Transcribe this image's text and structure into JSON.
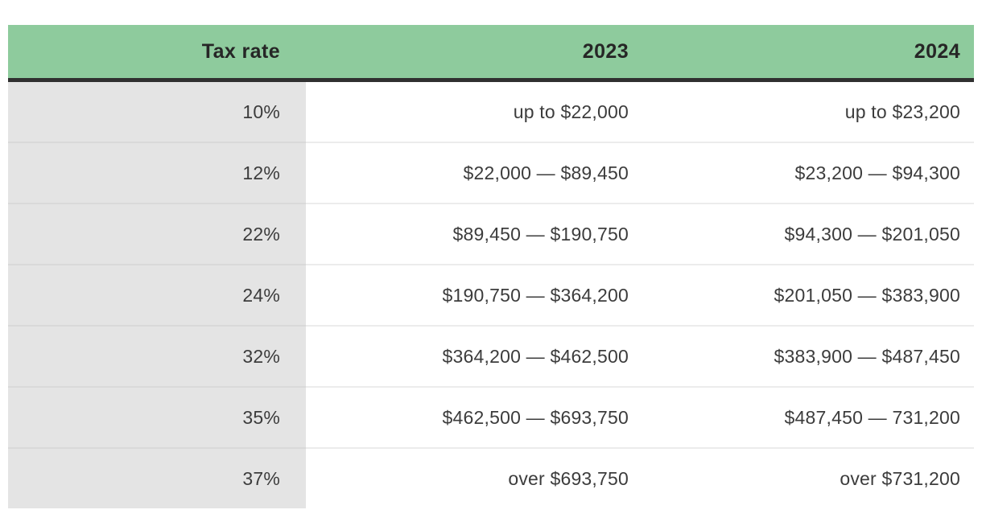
{
  "chart_data": {
    "type": "table",
    "columns": [
      "Tax rate",
      "2023",
      "2024"
    ],
    "rows": [
      [
        "10%",
        "up to $22,000",
        "up to $23,200"
      ],
      [
        "12%",
        "$22,000 — $89,450",
        "$23,200 — $94,300"
      ],
      [
        "22%",
        "$89,450 — $190,750",
        "$94,300 — $201,050"
      ],
      [
        "24%",
        "$190,750 — $364,200",
        "$201,050 — $383,900"
      ],
      [
        "32%",
        "$364,200 — $462,500",
        "$383,900 — $487,450"
      ],
      [
        "35%",
        "$462,500 — $693,750",
        "$487,450 — 731,200"
      ],
      [
        "37%",
        "over $693,750",
        "over $731,200"
      ]
    ],
    "layout_hints": {
      "header_alignment": "right",
      "cell_alignment": "right",
      "grid": "horizontal-dividers-only"
    }
  },
  "colors": {
    "header_bg": "#8ecb9d",
    "header_text": "#262626",
    "header_rule": "#303030",
    "rate_column_bg": "#e4e4e4",
    "row_divider_white_area": "#ececec",
    "row_divider_gray_area": "#d9d9d9",
    "body_text": "#3c3c3c",
    "page_bg": "#ffffff"
  }
}
